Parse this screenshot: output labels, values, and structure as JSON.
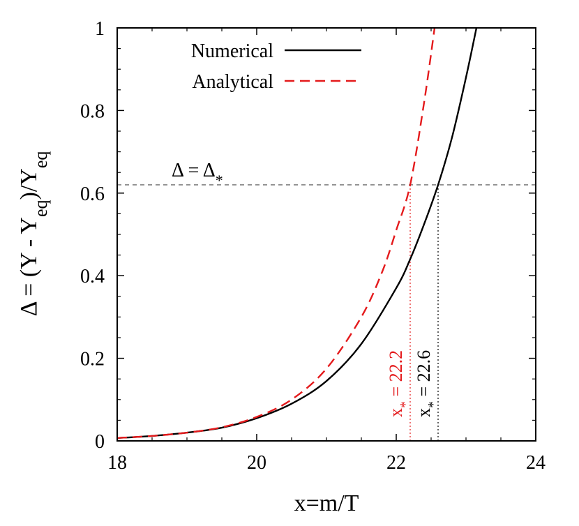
{
  "chart_data": {
    "type": "line",
    "xlabel": "x=m/T",
    "ylabel": "Δ = (Y - Y_eq)/Y_eq",
    "xlim": [
      18,
      24
    ],
    "ylim": [
      0,
      1
    ],
    "x_ticks": [
      18,
      20,
      22,
      24
    ],
    "y_ticks": [
      0,
      0.2,
      0.4,
      0.6,
      0.8,
      1
    ],
    "x_tick_labels": [
      "18",
      "20",
      "22",
      "24"
    ],
    "y_tick_labels": [
      "0",
      "0.2",
      "0.4",
      "0.6",
      "0.8",
      "1"
    ],
    "grid": false,
    "legend_position": "top-left",
    "series": [
      {
        "name": "Numerical",
        "color": "#000000",
        "style": "solid",
        "x": [
          18.0,
          18.5,
          19.0,
          19.5,
          20.0,
          20.5,
          21.0,
          21.5,
          22.0,
          22.2,
          22.4,
          22.6,
          22.8,
          23.0,
          23.15
        ],
        "y": [
          0.007,
          0.012,
          0.02,
          0.032,
          0.055,
          0.09,
          0.145,
          0.235,
          0.37,
          0.44,
          0.525,
          0.62,
          0.735,
          0.88,
          1.0
        ]
      },
      {
        "name": "Analytical",
        "color": "#e41a1c",
        "style": "dashed",
        "x": [
          18.0,
          18.5,
          19.0,
          19.5,
          20.0,
          20.5,
          21.0,
          21.5,
          21.8,
          22.0,
          22.2,
          22.4,
          22.55
        ],
        "y": [
          0.007,
          0.012,
          0.02,
          0.033,
          0.058,
          0.1,
          0.175,
          0.3,
          0.41,
          0.51,
          0.62,
          0.82,
          1.0
        ]
      }
    ],
    "reference_line": {
      "label": "Δ = Δ*",
      "label_base": "Δ = Δ",
      "label_sub": "*",
      "y": 0.62,
      "color": "#808080"
    },
    "annotations": [
      {
        "text": "x* = 22.2",
        "base": "x",
        "sub": "*",
        "rest": " = 22.2",
        "x": 22.2,
        "color": "#e41a1c"
      },
      {
        "text": "x* = 22.6",
        "base": "x",
        "sub": "*",
        "rest": " = 22.6",
        "x": 22.6,
        "color": "#000000"
      }
    ]
  }
}
